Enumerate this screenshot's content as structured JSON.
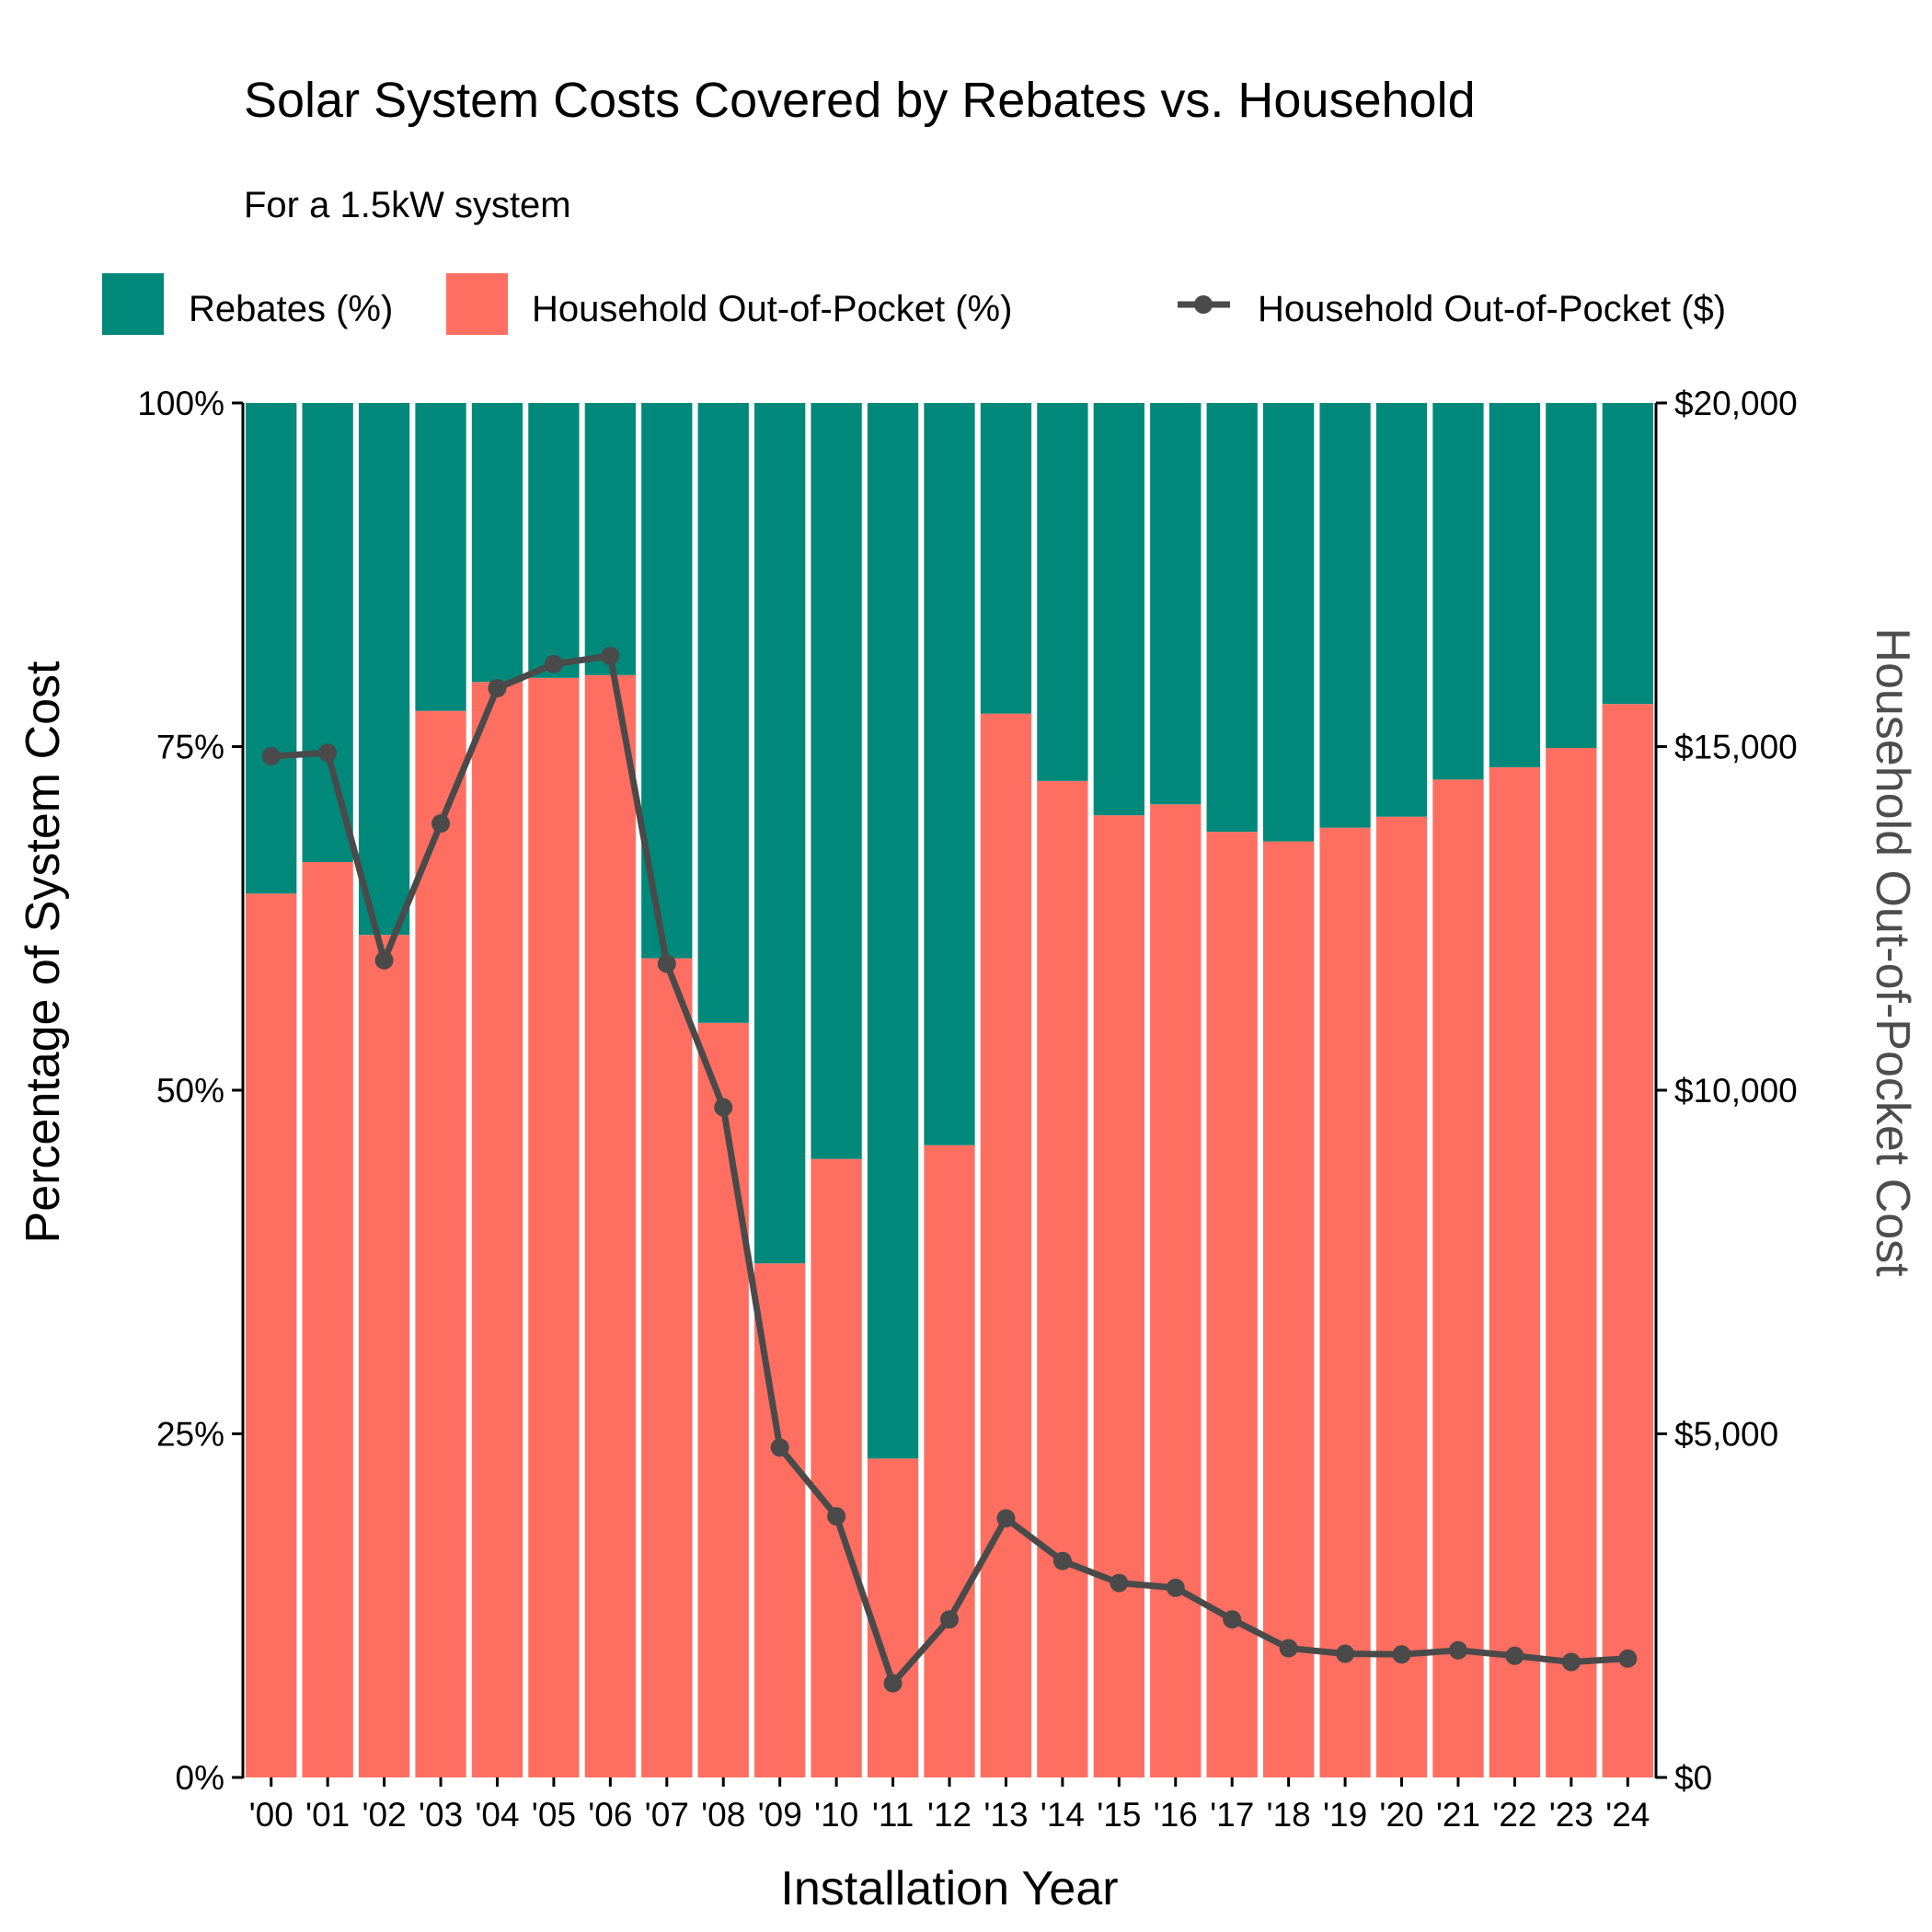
{
  "chart_data": {
    "type": "bar",
    "stacked": true,
    "title": "Solar System Costs Covered by Rebates vs. Household",
    "subtitle": "For a 1.5kW system",
    "xlabel": "Installation Year",
    "ylabel": "Percentage of System Cost",
    "ylabel_right": "Household Out-of-Pocket Cost",
    "ylim": [
      0,
      100
    ],
    "ylim_right": [
      0,
      20000
    ],
    "y_ticks": [
      "0%",
      "25%",
      "50%",
      "75%",
      "100%"
    ],
    "y_right_ticks": [
      "$0",
      "$5,000",
      "$10,000",
      "$15,000",
      "$20,000"
    ],
    "legend_position": "top",
    "categories": [
      "'00",
      "'01",
      "'02",
      "'03",
      "'04",
      "'05",
      "'06",
      "'07",
      "'08",
      "'09",
      "'10",
      "'11",
      "'12",
      "'13",
      "'14",
      "'15",
      "'16",
      "'17",
      "'18",
      "'19",
      "'20",
      "'21",
      "'22",
      "'23",
      "'24"
    ],
    "series": [
      {
        "name": "Rebates (%)",
        "color": "#00897B",
        "values": [
          35.7,
          33.4,
          38.7,
          22.4,
          20.3,
          20.0,
          19.8,
          40.4,
          45.1,
          62.6,
          55.0,
          76.8,
          54.0,
          22.6,
          27.5,
          30.0,
          29.2,
          31.2,
          31.9,
          30.9,
          30.1,
          27.4,
          26.5,
          25.1,
          21.9
        ]
      },
      {
        "name": "Household Out-of-Pocket (%)",
        "color": "#FF6F61",
        "values": [
          64.3,
          66.6,
          61.3,
          77.6,
          79.7,
          80.0,
          80.2,
          59.6,
          54.9,
          37.4,
          45.0,
          23.2,
          46.0,
          77.4,
          72.5,
          70.0,
          70.8,
          68.8,
          68.1,
          69.1,
          69.9,
          72.6,
          73.5,
          74.9,
          78.1
        ]
      },
      {
        "name": "Household Out-of-Pocket ($)",
        "type": "line",
        "color": "#4a4a4a",
        "values": [
          14860,
          14910,
          11890,
          13880,
          15850,
          16200,
          16320,
          11840,
          9750,
          4800,
          3800,
          1370,
          2300,
          3770,
          3150,
          2830,
          2760,
          2300,
          1880,
          1800,
          1790,
          1850,
          1770,
          1680,
          1730
        ]
      }
    ]
  }
}
